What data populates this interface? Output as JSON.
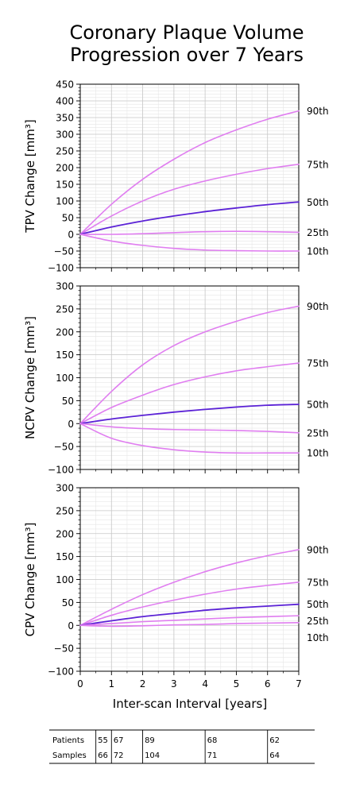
{
  "title_line1": "Coronary Plaque Volume",
  "title_line2": "Progression over 7 Years",
  "xlabel": "Inter-scan Interval [years]",
  "colors": {
    "p50": "#5b22d6",
    "p_outer": "#e07ef0",
    "grid": "#c8c8c8"
  },
  "chart_data": [
    {
      "type": "line",
      "ylabel": "TPV Change [mm³]",
      "xlim": [
        0,
        7
      ],
      "ylim": [
        -100,
        450
      ],
      "yticks": [
        -100,
        -50,
        0,
        50,
        100,
        150,
        200,
        250,
        300,
        350,
        400,
        450
      ],
      "series": [
        {
          "name": "90th",
          "x": [
            0,
            1,
            2,
            3,
            4,
            5,
            6,
            7
          ],
          "y": [
            0,
            90,
            165,
            225,
            275,
            313,
            345,
            370
          ]
        },
        {
          "name": "75th",
          "x": [
            0,
            1,
            2,
            3,
            4,
            5,
            6,
            7
          ],
          "y": [
            0,
            55,
            100,
            135,
            160,
            180,
            197,
            210
          ]
        },
        {
          "name": "50th",
          "x": [
            0,
            1,
            2,
            3,
            4,
            5,
            6,
            7
          ],
          "y": [
            0,
            22,
            40,
            55,
            68,
            79,
            89,
            97
          ]
        },
        {
          "name": "25th",
          "x": [
            0,
            1,
            2,
            3,
            4,
            5,
            6,
            7
          ],
          "y": [
            0,
            0,
            2,
            5,
            8,
            9,
            8,
            6
          ]
        },
        {
          "name": "10th",
          "x": [
            0,
            1,
            2,
            3,
            4,
            5,
            6,
            7
          ],
          "y": [
            0,
            -20,
            -33,
            -42,
            -47,
            -49,
            -50,
            -50
          ]
        }
      ]
    },
    {
      "type": "line",
      "ylabel": "NCPV Change [mm³]",
      "xlim": [
        0,
        7
      ],
      "ylim": [
        -100,
        300
      ],
      "yticks": [
        -100,
        -50,
        0,
        50,
        100,
        150,
        200,
        250,
        300
      ],
      "series": [
        {
          "name": "90th",
          "x": [
            0,
            1,
            2,
            3,
            4,
            5,
            6,
            7
          ],
          "y": [
            0,
            70,
            128,
            170,
            200,
            223,
            242,
            256
          ]
        },
        {
          "name": "75th",
          "x": [
            0,
            1,
            2,
            3,
            4,
            5,
            6,
            7
          ],
          "y": [
            0,
            35,
            62,
            85,
            102,
            115,
            124,
            132
          ]
        },
        {
          "name": "50th",
          "x": [
            0,
            1,
            2,
            3,
            4,
            5,
            6,
            7
          ],
          "y": [
            0,
            10,
            18,
            25,
            31,
            36,
            40,
            42
          ]
        },
        {
          "name": "25th",
          "x": [
            0,
            1,
            2,
            3,
            4,
            5,
            6,
            7
          ],
          "y": [
            0,
            -7,
            -11,
            -13,
            -14,
            -15,
            -17,
            -20
          ]
        },
        {
          "name": "10th",
          "x": [
            0,
            1,
            2,
            3,
            4,
            5,
            6,
            7
          ],
          "y": [
            0,
            -32,
            -48,
            -57,
            -62,
            -64,
            -64,
            -64
          ]
        }
      ]
    },
    {
      "type": "line",
      "ylabel": "CPV Change [mm³]",
      "xlim": [
        0,
        7
      ],
      "ylim": [
        -100,
        300
      ],
      "yticks": [
        -100,
        -50,
        0,
        50,
        100,
        150,
        200,
        250,
        300
      ],
      "xticks": [
        0,
        1,
        2,
        3,
        4,
        5,
        6,
        7
      ],
      "series": [
        {
          "name": "90th",
          "x": [
            0,
            1,
            2,
            3,
            4,
            5,
            6,
            7
          ],
          "y": [
            0,
            35,
            67,
            94,
            117,
            136,
            152,
            165
          ]
        },
        {
          "name": "75th",
          "x": [
            0,
            1,
            2,
            3,
            4,
            5,
            6,
            7
          ],
          "y": [
            0,
            22,
            40,
            55,
            68,
            79,
            87,
            94
          ]
        },
        {
          "name": "50th",
          "x": [
            0,
            1,
            2,
            3,
            4,
            5,
            6,
            7
          ],
          "y": [
            0,
            10,
            19,
            26,
            33,
            38,
            42,
            46
          ]
        },
        {
          "name": "25th",
          "x": [
            0,
            1,
            2,
            3,
            4,
            5,
            6,
            7
          ],
          "y": [
            0,
            4,
            8,
            11,
            14,
            17,
            19,
            21
          ]
        },
        {
          "name": "10th",
          "x": [
            0,
            1,
            2,
            3,
            4,
            5,
            6,
            7
          ],
          "y": [
            0,
            -2,
            -1,
            1,
            2,
            4,
            5,
            6
          ]
        }
      ]
    }
  ],
  "table": {
    "rows": [
      {
        "label": "Patients",
        "values": [
          "55",
          "67",
          "89",
          "68",
          "62"
        ]
      },
      {
        "label": "Samples",
        "values": [
          "66",
          "72",
          "104",
          "71",
          "64"
        ]
      }
    ],
    "boundaries": [
      0.5,
      1,
      2,
      4,
      6
    ]
  }
}
